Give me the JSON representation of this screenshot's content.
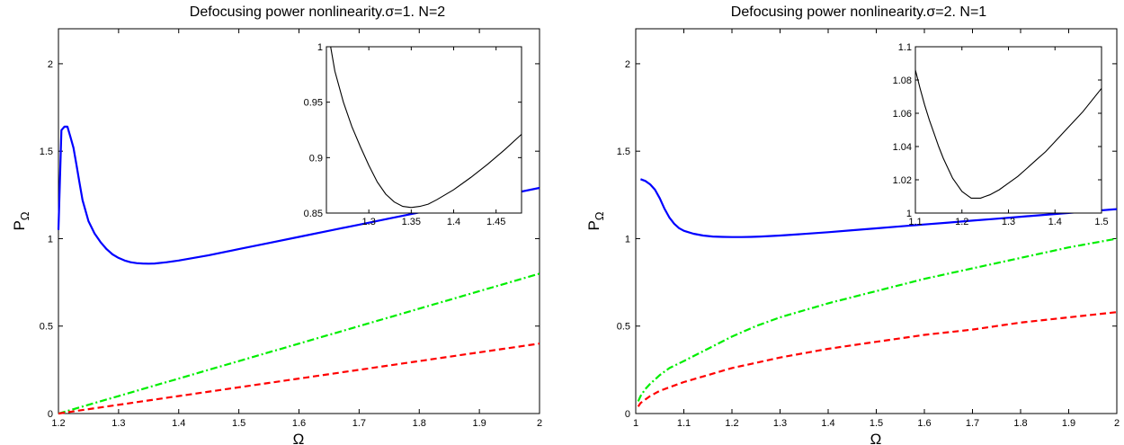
{
  "chart_data": [
    {
      "type": "line",
      "title": "Defocusing power nonlinearity.σ=1. N=2",
      "xlabel": "Ω",
      "ylabel": "P",
      "ylabel_sub": "Ω",
      "xlim": [
        1.2,
        2.0
      ],
      "ylim": [
        0,
        2.2
      ],
      "xticks": [
        1.2,
        1.3,
        1.4,
        1.5,
        1.6,
        1.7,
        1.8,
        1.9,
        2.0
      ],
      "xtick_labels": [
        "1.2",
        "1.3",
        "1.4",
        "1.5",
        "1.6",
        "1.7",
        "1.8",
        "1.9",
        "2"
      ],
      "yticks": [
        0,
        0.5,
        1,
        1.5,
        2
      ],
      "ytick_labels": [
        "0",
        "0.5",
        "1",
        "1.5",
        "2"
      ],
      "grid": false,
      "series": [
        {
          "style": "solid",
          "color": "#0000ff",
          "x": [
            1.2,
            1.205,
            1.21,
            1.215,
            1.22,
            1.225,
            1.23,
            1.235,
            1.24,
            1.245,
            1.25,
            1.26,
            1.27,
            1.28,
            1.29,
            1.3,
            1.31,
            1.32,
            1.33,
            1.34,
            1.35,
            1.36,
            1.38,
            1.4,
            1.45,
            1.5,
            1.55,
            1.6,
            1.65,
            1.7,
            1.75,
            1.8,
            1.85,
            1.9,
            1.95,
            2.0
          ],
          "y": [
            1.05,
            1.62,
            1.64,
            1.64,
            1.58,
            1.52,
            1.42,
            1.32,
            1.22,
            1.16,
            1.1,
            1.03,
            0.98,
            0.94,
            0.91,
            0.89,
            0.875,
            0.865,
            0.86,
            0.858,
            0.857,
            0.858,
            0.865,
            0.875,
            0.905,
            0.94,
            0.975,
            1.01,
            1.045,
            1.08,
            1.115,
            1.15,
            1.185,
            1.22,
            1.255,
            1.29
          ]
        },
        {
          "style": "dashdot",
          "color": "#00ee00",
          "x": [
            1.2,
            2.0
          ],
          "y": [
            0,
            0.8
          ]
        },
        {
          "style": "dashed",
          "color": "#ff0000",
          "x": [
            1.2,
            2.0
          ],
          "y": [
            0,
            0.4
          ]
        }
      ],
      "inset": {
        "xlim": [
          1.25,
          1.48
        ],
        "ylim": [
          0.85,
          1.0
        ],
        "xticks": [
          1.3,
          1.35,
          1.4,
          1.45
        ],
        "xtick_labels": [
          "1.3",
          "1.35",
          "1.4",
          "1.45"
        ],
        "yticks": [
          0.85,
          0.9,
          0.95,
          1.0
        ],
        "ytick_labels": [
          "0.85",
          "0.9",
          "0.95",
          "1"
        ],
        "x": [
          1.255,
          1.26,
          1.27,
          1.28,
          1.29,
          1.3,
          1.31,
          1.32,
          1.33,
          1.34,
          1.35,
          1.36,
          1.37,
          1.38,
          1.4,
          1.42,
          1.44,
          1.46,
          1.48
        ],
        "y": [
          1.0,
          0.978,
          0.95,
          0.928,
          0.91,
          0.893,
          0.878,
          0.867,
          0.86,
          0.856,
          0.855,
          0.856,
          0.858,
          0.862,
          0.871,
          0.882,
          0.894,
          0.907,
          0.921
        ]
      }
    },
    {
      "type": "line",
      "title": "Defocusing power nonlinearity.σ=2. N=1",
      "xlabel": "Ω",
      "ylabel": "P",
      "ylabel_sub": "Ω",
      "xlim": [
        1.0,
        2.0
      ],
      "ylim": [
        0,
        2.2
      ],
      "xticks": [
        1.0,
        1.1,
        1.2,
        1.3,
        1.4,
        1.5,
        1.6,
        1.7,
        1.8,
        1.9,
        2.0
      ],
      "xtick_labels": [
        "1",
        "1.1",
        "1.2",
        "1.3",
        "1.4",
        "1.5",
        "1.6",
        "1.7",
        "1.8",
        "1.9",
        "2"
      ],
      "yticks": [
        0,
        0.5,
        1,
        1.5,
        2
      ],
      "ytick_labels": [
        "0",
        "0.5",
        "1",
        "1.5",
        "2"
      ],
      "grid": false,
      "series": [
        {
          "style": "solid",
          "color": "#0000ff",
          "x": [
            1.01,
            1.02,
            1.03,
            1.04,
            1.05,
            1.06,
            1.07,
            1.08,
            1.09,
            1.1,
            1.12,
            1.14,
            1.16,
            1.18,
            1.2,
            1.22,
            1.24,
            1.26,
            1.3,
            1.35,
            1.4,
            1.45,
            1.5,
            1.55,
            1.6,
            1.65,
            1.7,
            1.75,
            1.8,
            1.85,
            1.9,
            1.95,
            2.0
          ],
          "y": [
            1.34,
            1.33,
            1.31,
            1.28,
            1.23,
            1.17,
            1.12,
            1.085,
            1.06,
            1.045,
            1.028,
            1.018,
            1.012,
            1.01,
            1.009,
            1.009,
            1.01,
            1.012,
            1.018,
            1.027,
            1.037,
            1.048,
            1.059,
            1.07,
            1.081,
            1.092,
            1.103,
            1.114,
            1.125,
            1.136,
            1.147,
            1.158,
            1.169
          ]
        },
        {
          "style": "dashdot",
          "color": "#00ee00",
          "x": [
            1.005,
            1.01,
            1.02,
            1.03,
            1.05,
            1.07,
            1.1,
            1.15,
            1.2,
            1.25,
            1.3,
            1.4,
            1.5,
            1.6,
            1.7,
            1.8,
            1.9,
            2.0
          ],
          "y": [
            0.07,
            0.1,
            0.14,
            0.17,
            0.22,
            0.26,
            0.3,
            0.37,
            0.44,
            0.5,
            0.55,
            0.63,
            0.7,
            0.77,
            0.83,
            0.89,
            0.95,
            1.0
          ]
        },
        {
          "style": "dashed",
          "color": "#ff0000",
          "x": [
            1.005,
            1.01,
            1.02,
            1.03,
            1.05,
            1.07,
            1.1,
            1.15,
            1.2,
            1.25,
            1.3,
            1.4,
            1.5,
            1.6,
            1.7,
            1.8,
            1.9,
            2.0
          ],
          "y": [
            0.04,
            0.06,
            0.08,
            0.1,
            0.13,
            0.15,
            0.18,
            0.22,
            0.26,
            0.29,
            0.32,
            0.37,
            0.41,
            0.45,
            0.48,
            0.52,
            0.55,
            0.58
          ]
        }
      ],
      "inset": {
        "xlim": [
          1.1,
          1.5
        ],
        "ylim": [
          1.0,
          1.1
        ],
        "xticks": [
          1.1,
          1.2,
          1.3,
          1.4,
          1.5
        ],
        "xtick_labels": [
          "1.1",
          "1.2",
          "1.3",
          "1.4",
          "1.5"
        ],
        "yticks": [
          1.0,
          1.02,
          1.04,
          1.06,
          1.08,
          1.1
        ],
        "ytick_labels": [
          "1",
          "1.02",
          "1.04",
          "1.06",
          "1.08",
          "1.1"
        ],
        "x": [
          1.1,
          1.11,
          1.12,
          1.13,
          1.14,
          1.15,
          1.16,
          1.17,
          1.18,
          1.19,
          1.2,
          1.21,
          1.22,
          1.23,
          1.24,
          1.25,
          1.26,
          1.28,
          1.3,
          1.32,
          1.34,
          1.36,
          1.38,
          1.4,
          1.42,
          1.44,
          1.46,
          1.48,
          1.5
        ],
        "y": [
          1.086,
          1.075,
          1.065,
          1.056,
          1.048,
          1.04,
          1.033,
          1.027,
          1.021,
          1.017,
          1.013,
          1.011,
          1.009,
          1.009,
          1.009,
          1.01,
          1.011,
          1.014,
          1.018,
          1.022,
          1.027,
          1.032,
          1.037,
          1.043,
          1.049,
          1.055,
          1.061,
          1.068,
          1.075
        ]
      }
    }
  ]
}
